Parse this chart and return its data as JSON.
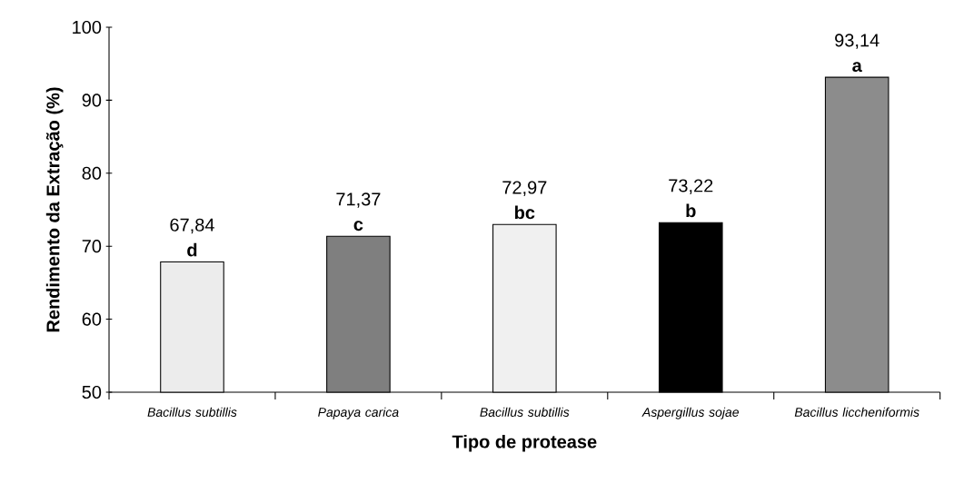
{
  "chart_data": {
    "type": "bar",
    "xlabel": "Tipo de protease",
    "ylabel": "Rendimento da Extração (%)",
    "categories": [
      "*Bacillus subtillis*",
      "*Papaya carica*",
      "*Bacillus subtillis*",
      "*Aspergillus sojae*",
      "*Bacillus liccheniformis*"
    ],
    "values": [
      67.84,
      71.37,
      72.97,
      73.22,
      93.14
    ],
    "value_labels": [
      "67,84",
      "71,37",
      "72,97",
      "73,22",
      "93,14"
    ],
    "colors": [
      "#ececec",
      "#7f7f7f",
      "#f0f0f0",
      "#000000",
      "#8c8c8c"
    ],
    "ylim": [
      50,
      100
    ],
    "yticks": [
      50,
      60,
      70,
      80,
      90,
      100
    ],
    "annotations": [
      "d",
      "c",
      "bc",
      "b",
      "a"
    ]
  }
}
